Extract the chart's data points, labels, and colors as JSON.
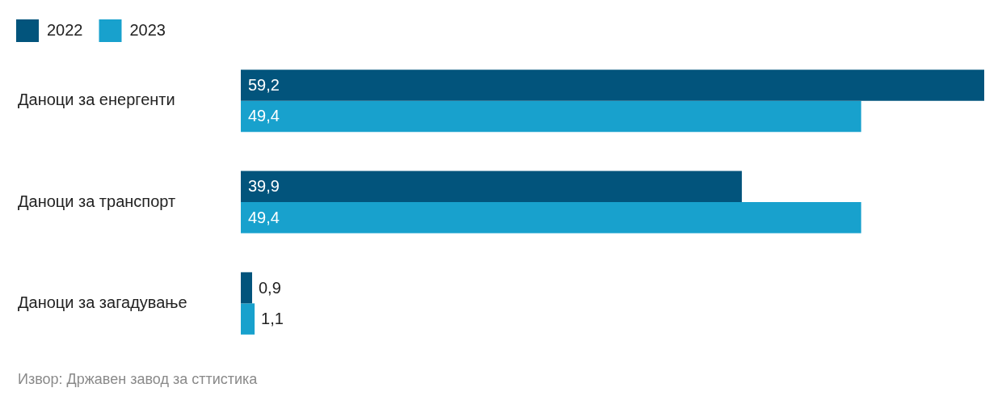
{
  "chart_data": {
    "type": "bar",
    "orientation": "horizontal",
    "categories": [
      "Даноци за енергенти",
      "Даноци за транспорт",
      "Даноци за загадување"
    ],
    "series": [
      {
        "name": "2022",
        "color": "#02547c",
        "values": [
          59.2,
          39.9,
          0.9
        ],
        "value_labels": [
          "59,2",
          "39,9",
          "0,9"
        ]
      },
      {
        "name": "2023",
        "color": "#18a1cd",
        "values": [
          49.4,
          49.4,
          1.1
        ],
        "value_labels": [
          "49,4",
          "49,4",
          "1,1"
        ]
      }
    ],
    "legend": "top left",
    "tick_labels": "y",
    "annotations": [
      "Извор: Државен завод за сттистика"
    ]
  }
}
